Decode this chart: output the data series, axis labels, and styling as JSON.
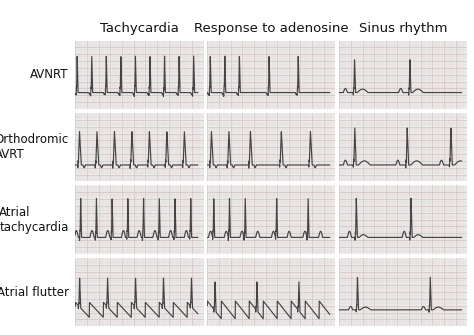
{
  "col_headers": [
    "Tachycardia",
    "Response to adenosine",
    "Sinus rhythm"
  ],
  "row_labels": [
    "AVNRT",
    "Orthodromic\nAVRT",
    "Atrial\ntachycardia",
    "Atrial flutter"
  ],
  "bg_color": "#f0eeee",
  "grid_minor_color": "#ddd8d8",
  "grid_major_color": "#ccbbbb",
  "line_color": "#444444",
  "fig_bg": "#ffffff",
  "outer_bg": "#f5f5f5",
  "header_fontsize": 9.5,
  "label_fontsize": 8.5
}
